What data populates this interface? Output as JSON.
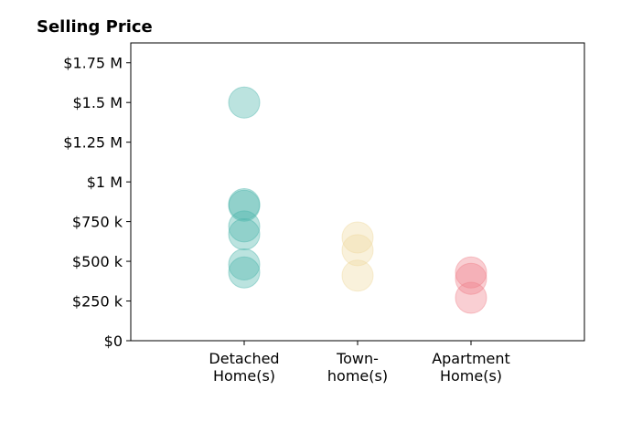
{
  "chart_data": {
    "type": "scatter",
    "title": "Selling Price",
    "xlabel": "",
    "ylabel": "",
    "ylim": [
      0,
      1875000
    ],
    "y_ticks": [
      {
        "value": 0,
        "label": "$0"
      },
      {
        "value": 250000,
        "label": "$250 k"
      },
      {
        "value": 500000,
        "label": "$500 k"
      },
      {
        "value": 750000,
        "label": "$750 k"
      },
      {
        "value": 1000000,
        "label": "$1 M"
      },
      {
        "value": 1250000,
        "label": "$1.25 M"
      },
      {
        "value": 1500000,
        "label": "$1.5 M"
      },
      {
        "value": 1750000,
        "label": "$1.75 M"
      }
    ],
    "categories": [
      [
        "Detached",
        "Home(s)"
      ],
      [
        "Town-",
        "home(s)"
      ],
      [
        "Apartment",
        "Home(s)"
      ]
    ],
    "grid": false,
    "series": [
      {
        "category_index": 0,
        "color": "#4db6ac",
        "values": [
          1500000,
          860000,
          850000,
          720000,
          670000,
          480000,
          430000
        ]
      },
      {
        "category_index": 1,
        "color": "#f0d9a0",
        "values": [
          650000,
          570000,
          410000
        ]
      },
      {
        "category_index": 2,
        "color": "#f0828c",
        "values": [
          430000,
          390000,
          270000
        ]
      }
    ]
  }
}
